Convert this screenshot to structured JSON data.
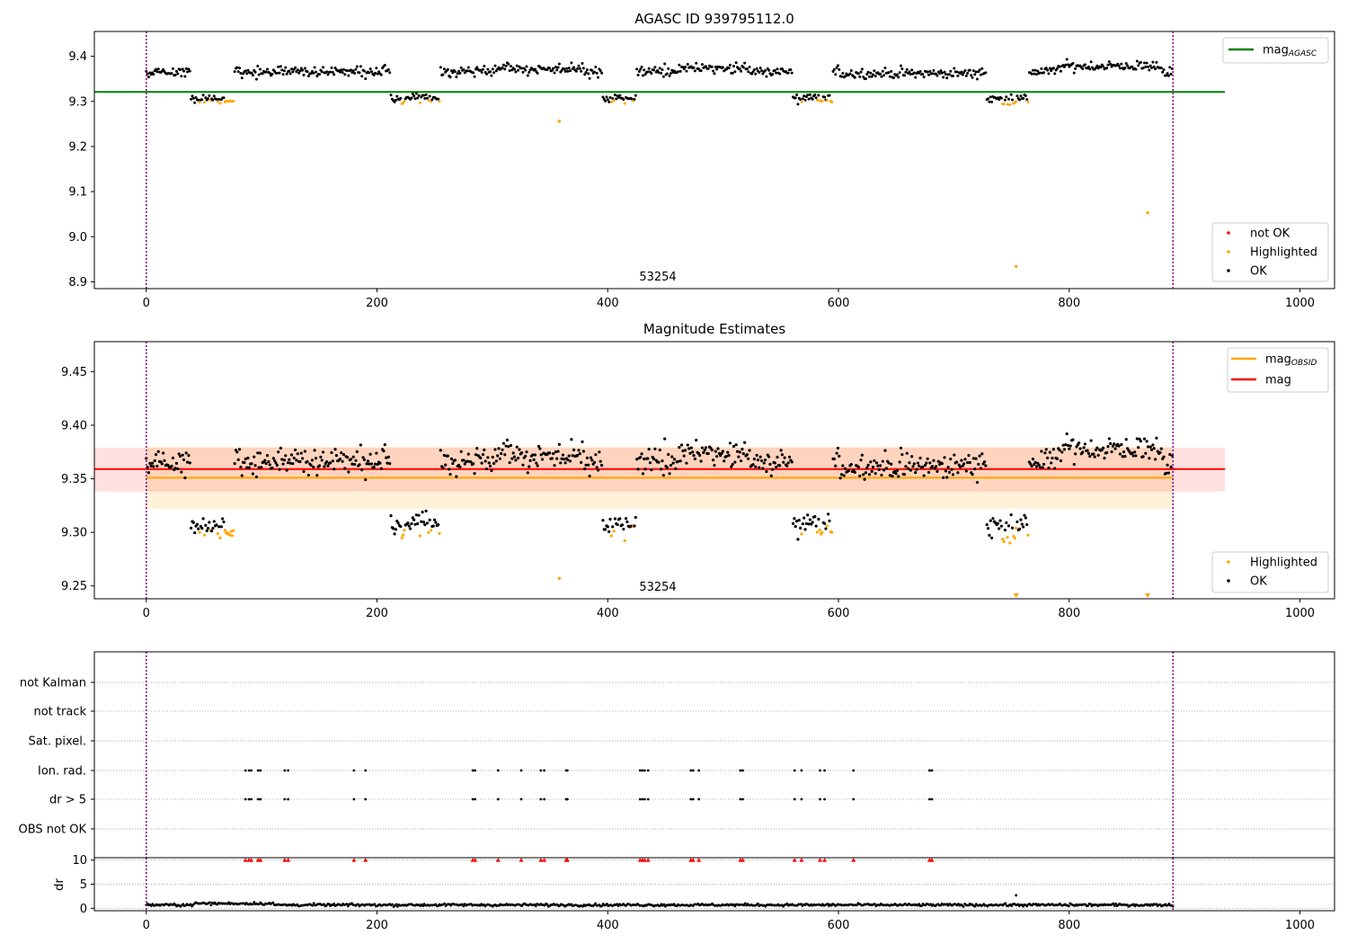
{
  "chart_data": [
    {
      "panel": "agasc",
      "type": "scatter",
      "title": "AGASC ID 939795112.0",
      "xlim": [
        -45,
        1030
      ],
      "ylim": [
        8.885,
        9.455
      ],
      "xticks": [
        "0",
        "200",
        "400",
        "600",
        "800",
        "1000"
      ],
      "yticks": [
        "8.9",
        "9.0",
        "9.1",
        "9.2",
        "9.3",
        "9.4"
      ],
      "annotation": {
        "text": "53254",
        "x": 445
      },
      "vlines": [
        0,
        890
      ],
      "hlines": [
        {
          "name": "mag",
          "sub": "AGASC",
          "y": 9.321,
          "x": [
            -45,
            935
          ],
          "color": "#008000"
        }
      ],
      "legend_lines": [
        {
          "name": "mag",
          "sub": "AGASC",
          "color": "#008000"
        }
      ],
      "legend_points": [
        {
          "name": "not OK",
          "color": "#ff0000"
        },
        {
          "name": "Highlighted",
          "color": "#ffa500"
        },
        {
          "name": "OK",
          "color": "#000000"
        }
      ],
      "outliers": [
        {
          "x": 358,
          "y": 9.256,
          "color": "#ffa500"
        },
        {
          "x": 754,
          "y": 8.934,
          "color": "#ffa500"
        },
        {
          "x": 868,
          "y": 9.053,
          "color": "#ffa500"
        }
      ]
    },
    {
      "panel": "estimates",
      "type": "scatter",
      "title": "Magnitude Estimates",
      "xlim": [
        -45,
        1030
      ],
      "ylim": [
        9.238,
        9.478
      ],
      "xticks": [
        "0",
        "200",
        "400",
        "600",
        "800",
        "1000"
      ],
      "yticks": [
        "9.25",
        "9.30",
        "9.35",
        "9.40",
        "9.45"
      ],
      "annotation": {
        "text": "53254",
        "x": 445
      },
      "vlines": [
        0,
        890
      ],
      "bands": [
        {
          "y": [
            9.322,
            9.38
          ],
          "x": [
            0,
            890
          ],
          "color": "#ffa500",
          "opacity": 0.15
        },
        {
          "y": [
            9.338,
            9.379
          ],
          "x": [
            -45,
            935
          ],
          "color": "#ff0000",
          "opacity": 0.12
        }
      ],
      "hlines": [
        {
          "name": "mag",
          "sub": "OBSID",
          "y": 9.351,
          "x": [
            0,
            890
          ],
          "color": "#ffa500"
        },
        {
          "name": "mag",
          "y": 9.359,
          "x": [
            -45,
            935
          ],
          "color": "#ff0000"
        }
      ],
      "legend_lines": [
        {
          "name": "mag",
          "sub": "OBSID",
          "color": "#ffa500"
        },
        {
          "name": "mag",
          "color": "#ff0000"
        }
      ],
      "legend_points": [
        {
          "name": "Highlighted",
          "color": "#ffa500"
        },
        {
          "name": "OK",
          "color": "#000000"
        }
      ],
      "outliers": [
        {
          "x": 358,
          "y": 9.257,
          "color": "#ffa500"
        }
      ],
      "offscale_markers": [
        754,
        868
      ]
    },
    {
      "panel": "flags",
      "type": "scatter",
      "xlim": [
        -45,
        1030
      ],
      "categories": [
        "OBS not OK",
        "dr > 5",
        "Ion. rad.",
        "Sat. pixel.",
        "not track",
        "not Kalman"
      ],
      "flag_x": [
        86,
        89,
        91,
        97,
        99,
        120,
        123,
        180,
        190,
        283,
        285,
        305,
        325,
        342,
        345,
        364,
        365,
        428,
        430,
        432,
        435,
        472,
        474,
        479,
        515,
        517,
        562,
        568,
        584,
        588,
        613,
        679,
        681
      ],
      "flag_rows": [
        "dr > 5",
        "Ion. rad."
      ],
      "vlines": [
        0,
        890
      ]
    },
    {
      "panel": "dr",
      "type": "scatter",
      "ylabel": "dr",
      "xlim": [
        -45,
        1030
      ],
      "ylim": [
        -0.5,
        10.5
      ],
      "xticks": [
        "0",
        "200",
        "400",
        "600",
        "800",
        "1000"
      ],
      "yticks": [
        "0",
        "5",
        "10"
      ],
      "clipped_value": 10,
      "outliers": [
        {
          "x": 754,
          "y": 2.7
        }
      ],
      "vlines": [
        0,
        890
      ]
    }
  ]
}
